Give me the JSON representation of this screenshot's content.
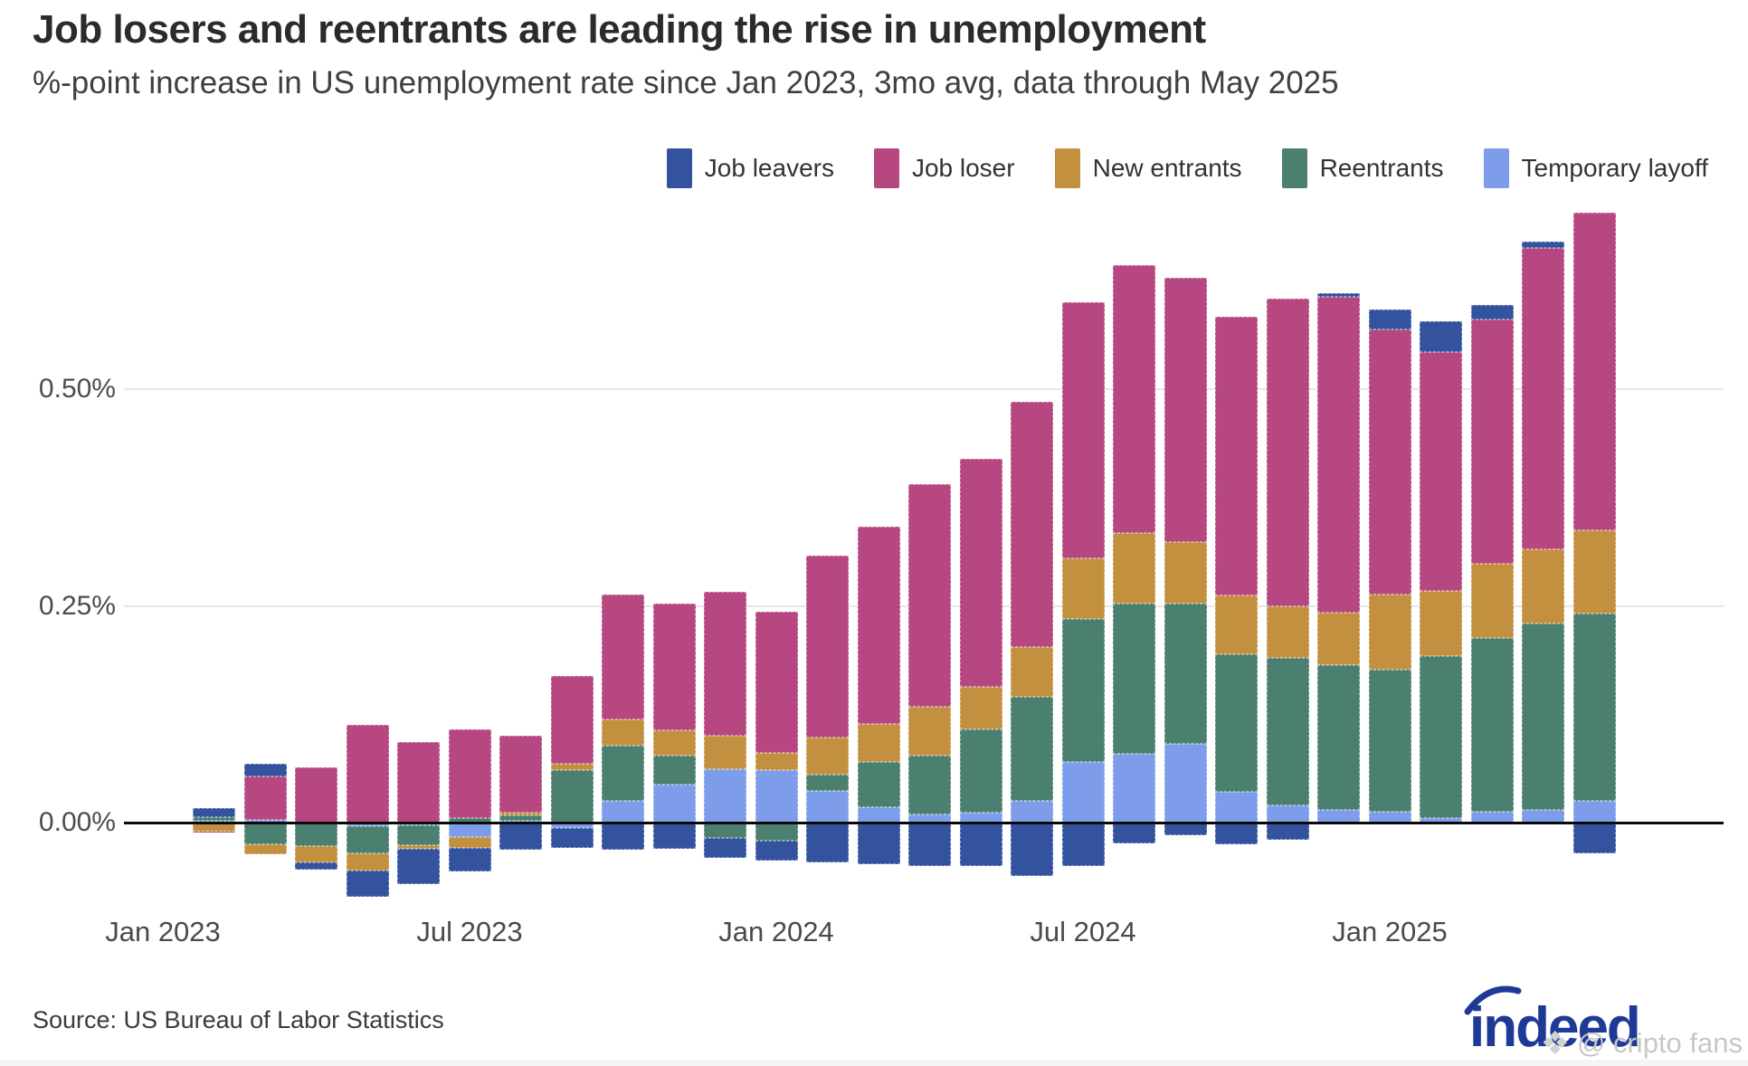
{
  "title": "Job losers and reentrants are leading the rise in unemployment",
  "subtitle": "%-point increase in US unemployment rate since Jan 2023, 3mo avg, data through May 2025",
  "source": "Source: US Bureau of Labor Statistics",
  "branding": {
    "logo_text": "indeed",
    "watermark_icon": "diamond-cluster-icon",
    "watermark_text": "@ cripto fans"
  },
  "colors": {
    "job_leavers": "#33539f",
    "job_loser": "#b74781",
    "new_entrants": "#c2903f",
    "reentrants": "#4b8070",
    "temporary_layoff": "#7d9ce9",
    "gridline": "#e7e7e7",
    "axis": "#0a0a0a",
    "logo_blue": "#1e3a96"
  },
  "chart_data": {
    "type": "bar",
    "stacked": true,
    "grid": "horizontal-only",
    "legend_position": "top-right",
    "y_ticks": [
      {
        "label": "0.50%",
        "value": 0.5
      },
      {
        "label": "0.25%",
        "value": 0.25
      },
      {
        "label": "0.00%",
        "value": 0.0
      }
    ],
    "ylim": [
      -0.09,
      0.72
    ],
    "x_tick_labels": [
      {
        "label": "Jan 2023",
        "slot": 0
      },
      {
        "label": "Jul 2023",
        "slot": 6
      },
      {
        "label": "Jan 2024",
        "slot": 12
      },
      {
        "label": "Jul 2024",
        "slot": 18
      },
      {
        "label": "Jan 2025",
        "slot": 24
      }
    ],
    "note": "Jan 2023 is the zero baseline (no bar); visible bars run Feb 2023 - May 2025",
    "categories": [
      "Feb 2023",
      "Mar 2023",
      "Apr 2023",
      "May 2023",
      "Jun 2023",
      "Jul 2023",
      "Aug 2023",
      "Sep 2023",
      "Oct 2023",
      "Nov 2023",
      "Dec 2023",
      "Jan 2024",
      "Feb 2024",
      "Mar 2024",
      "Apr 2024",
      "May 2024",
      "Jun 2024",
      "Jul 2024",
      "Aug 2024",
      "Sep 2024",
      "Oct 2024",
      "Nov 2024",
      "Dec 2024",
      "Jan 2025",
      "Feb 2025",
      "Mar 2025",
      "Apr 2025",
      "May 2025"
    ],
    "series": [
      {
        "name": "Job leavers",
        "color": "#33539f",
        "values": [
          0.011,
          0.015,
          -0.008,
          -0.031,
          -0.041,
          -0.027,
          -0.031,
          -0.023,
          -0.031,
          -0.03,
          -0.023,
          -0.023,
          -0.046,
          -0.048,
          -0.05,
          -0.05,
          -0.062,
          -0.05,
          -0.024,
          -0.015,
          -0.025,
          -0.02,
          0.005,
          0.023,
          0.035,
          0.017,
          0.007,
          -0.036
        ]
      },
      {
        "name": "Job loser",
        "color": "#b74781",
        "values": [
          -0.002,
          0.05,
          0.064,
          0.113,
          0.093,
          0.102,
          0.089,
          0.101,
          0.144,
          0.147,
          0.166,
          0.163,
          0.21,
          0.227,
          0.256,
          0.263,
          0.283,
          0.295,
          0.309,
          0.304,
          0.322,
          0.355,
          0.364,
          0.306,
          0.276,
          0.281,
          0.348,
          0.367
        ]
      },
      {
        "name": "New entrants",
        "color": "#c2903f",
        "values": [
          -0.01,
          -0.012,
          -0.019,
          -0.019,
          -0.004,
          -0.012,
          0.003,
          0.007,
          0.03,
          0.029,
          0.038,
          0.019,
          0.043,
          0.044,
          0.057,
          0.05,
          0.057,
          0.07,
          0.081,
          0.071,
          0.068,
          0.059,
          0.06,
          0.087,
          0.075,
          0.086,
          0.085,
          0.096
        ]
      },
      {
        "name": "Reentrants",
        "color": "#4b8070",
        "values": [
          0.004,
          -0.025,
          -0.027,
          -0.032,
          -0.023,
          0.005,
          0.006,
          0.061,
          0.064,
          0.033,
          -0.018,
          -0.021,
          0.018,
          0.052,
          0.068,
          0.096,
          0.12,
          0.165,
          0.174,
          0.162,
          0.158,
          0.17,
          0.167,
          0.163,
          0.187,
          0.2,
          0.215,
          0.216
        ]
      },
      {
        "name": "Temporary layoff",
        "color": "#7d9ce9",
        "values": [
          0.002,
          0.003,
          0.0,
          -0.004,
          -0.003,
          -0.017,
          0.002,
          -0.006,
          0.025,
          0.044,
          0.062,
          0.061,
          0.037,
          0.018,
          0.009,
          0.011,
          0.025,
          0.07,
          0.079,
          0.091,
          0.036,
          0.02,
          0.015,
          0.013,
          0.005,
          0.013,
          0.015,
          0.025
        ]
      }
    ],
    "stack_order": [
      4,
      3,
      2,
      1,
      0
    ]
  }
}
